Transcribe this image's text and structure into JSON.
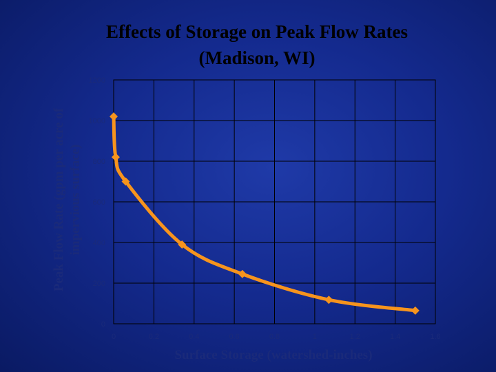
{
  "chart_data": {
    "type": "line",
    "title_lines": [
      "Effects of Storage on Peak Flow Rates",
      "(Madison, WI)"
    ],
    "xlabel": "Surface Storage (watershed-inches)",
    "ylabel_lines": [
      "Peak Flow Rate (gpm per acre of",
      "impervious surface)"
    ],
    "xlim": [
      0,
      1.6
    ],
    "ylim": [
      0,
      1200
    ],
    "xticks": [
      "0",
      "0.2",
      "0.4",
      "0.6",
      "0.8",
      "1",
      "1.2",
      "1.4",
      "1.6"
    ],
    "yticks": [
      "0",
      "200",
      "400",
      "600",
      "800",
      "1000",
      "1200"
    ],
    "grid": true,
    "colors": {
      "line": "#f7941d",
      "marker": "#f7941d",
      "grid": "#000000",
      "plot_bg": "#142a8e"
    },
    "series": [
      {
        "x": [
          0.0,
          0.01,
          0.06,
          0.34,
          0.64,
          1.07,
          1.5
        ],
        "y": [
          1020,
          820,
          700,
          390,
          245,
          118,
          65
        ]
      }
    ]
  }
}
